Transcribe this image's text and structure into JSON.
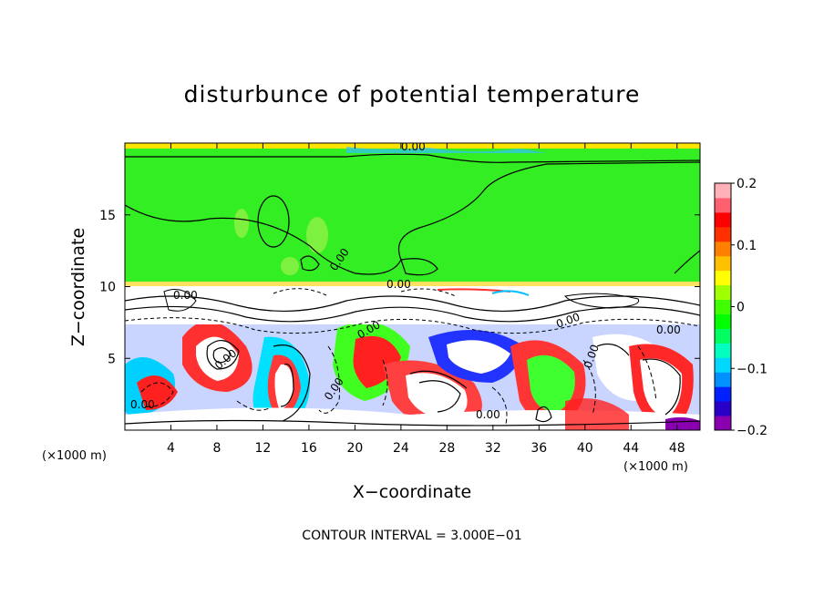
{
  "chart_data": {
    "type": "heatmap",
    "title": "disturbunce of potential temperature",
    "xlabel": "X−coordinate",
    "ylabel": "Z−coordinate",
    "x_unit": "(×1000 m)",
    "z_unit": "(×1000 m)",
    "xlim": [
      0,
      50
    ],
    "ylim": [
      0,
      20
    ],
    "x_ticks": [
      "4",
      "8",
      "12",
      "16",
      "20",
      "24",
      "28",
      "32",
      "36",
      "40",
      "44",
      "48"
    ],
    "y_ticks": [
      "5",
      "10",
      "15"
    ],
    "colorbar": {
      "range": [
        -0.2,
        0.2
      ],
      "ticks": [
        "0.2",
        "0.1",
        "0",
        "−0.1",
        "−0.2"
      ],
      "colors": [
        "#8a00b0",
        "#2a00c8",
        "#0020ff",
        "#0090ff",
        "#00d8ff",
        "#00ffc0",
        "#00ff60",
        "#00ff00",
        "#40ff00",
        "#a0ff00",
        "#ffff00",
        "#ffc000",
        "#ff8000",
        "#ff3000",
        "#ff0000",
        "#ff6070",
        "#ffb0b8"
      ]
    },
    "contour_labels": [
      "0.00",
      "0.00",
      "0.00",
      "0.00",
      "0.00",
      "0.00",
      "0.00",
      "0.00",
      "0.00",
      "0.00",
      "0.00",
      "0.00"
    ],
    "contour_interval_text": "CONTOUR INTERVAL = 3.000E−01"
  }
}
